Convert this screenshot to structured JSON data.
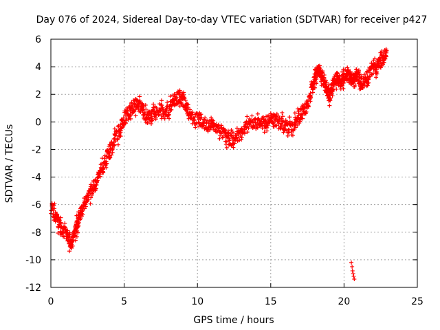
{
  "chart_data": {
    "type": "scatter",
    "title": "Day 076 of 2024, Sidereal Day-to-day VTEC variation (SDTVAR) for receiver p427",
    "xlabel": "GPS time / hours",
    "ylabel": "SDTVAR / TECUs",
    "xlim": [
      0,
      25
    ],
    "ylim": [
      -12,
      6
    ],
    "xticks": [
      "0",
      "5",
      "10",
      "15",
      "20",
      "25"
    ],
    "yticks": [
      "-12",
      "-10",
      "-8",
      "-6",
      "-4",
      "-2",
      "0",
      "2",
      "4",
      "6"
    ],
    "grid": true,
    "marker": "plus",
    "color": "#ff0000",
    "series": [
      {
        "name": "p427",
        "trend": [
          [
            0.0,
            -6.2
          ],
          [
            0.3,
            -6.8
          ],
          [
            0.6,
            -7.5
          ],
          [
            0.9,
            -8.0
          ],
          [
            1.2,
            -8.4
          ],
          [
            1.4,
            -8.8
          ],
          [
            1.6,
            -8.2
          ],
          [
            1.8,
            -7.4
          ],
          [
            2.0,
            -6.8
          ],
          [
            2.3,
            -6.0
          ],
          [
            2.6,
            -5.3
          ],
          [
            2.9,
            -4.8
          ],
          [
            3.2,
            -4.2
          ],
          [
            3.5,
            -3.4
          ],
          [
            3.8,
            -2.6
          ],
          [
            4.0,
            -2.2
          ],
          [
            4.3,
            -1.4
          ],
          [
            4.6,
            -0.7
          ],
          [
            4.9,
            0.0
          ],
          [
            5.2,
            0.6
          ],
          [
            5.5,
            1.0
          ],
          [
            5.8,
            1.3
          ],
          [
            6.1,
            1.1
          ],
          [
            6.4,
            0.6
          ],
          [
            6.7,
            0.3
          ],
          [
            7.0,
            0.6
          ],
          [
            7.4,
            0.9
          ],
          [
            7.8,
            0.6
          ],
          [
            8.2,
            1.2
          ],
          [
            8.5,
            1.7
          ],
          [
            8.8,
            1.8
          ],
          [
            9.1,
            1.4
          ],
          [
            9.4,
            0.8
          ],
          [
            9.8,
            0.3
          ],
          [
            10.2,
            0.1
          ],
          [
            10.6,
            -0.2
          ],
          [
            11.0,
            -0.2
          ],
          [
            11.4,
            -0.5
          ],
          [
            11.8,
            -0.9
          ],
          [
            12.2,
            -1.3
          ],
          [
            12.6,
            -1.2
          ],
          [
            13.0,
            -0.7
          ],
          [
            13.4,
            -0.3
          ],
          [
            13.8,
            -0.1
          ],
          [
            14.2,
            0.0
          ],
          [
            14.6,
            -0.1
          ],
          [
            15.0,
            0.2
          ],
          [
            15.4,
            0.0
          ],
          [
            15.8,
            -0.2
          ],
          [
            16.2,
            -0.4
          ],
          [
            16.6,
            -0.2
          ],
          [
            16.9,
            0.3
          ],
          [
            17.2,
            0.7
          ],
          [
            17.5,
            1.2
          ],
          [
            17.8,
            2.3
          ],
          [
            18.0,
            3.1
          ],
          [
            18.2,
            3.9
          ],
          [
            18.4,
            3.7
          ],
          [
            18.6,
            3.0
          ],
          [
            18.8,
            2.2
          ],
          [
            19.0,
            1.9
          ],
          [
            19.2,
            2.5
          ],
          [
            19.4,
            3.0
          ],
          [
            19.6,
            3.3
          ],
          [
            19.8,
            2.7
          ],
          [
            20.0,
            3.2
          ],
          [
            20.2,
            3.6
          ],
          [
            20.4,
            3.2
          ],
          [
            20.6,
            3.0
          ],
          [
            20.8,
            3.5
          ],
          [
            21.0,
            3.2
          ],
          [
            21.2,
            2.8
          ],
          [
            21.5,
            3.2
          ],
          [
            21.8,
            3.6
          ],
          [
            22.1,
            3.8
          ],
          [
            22.4,
            4.3
          ],
          [
            22.7,
            4.6
          ],
          [
            22.9,
            5.0
          ]
        ],
        "outliers": [
          [
            20.5,
            -10.2
          ],
          [
            20.55,
            -10.5
          ],
          [
            20.58,
            -10.8
          ],
          [
            20.62,
            -11.0
          ],
          [
            20.66,
            -11.2
          ],
          [
            20.7,
            -11.4
          ]
        ]
      }
    ]
  }
}
